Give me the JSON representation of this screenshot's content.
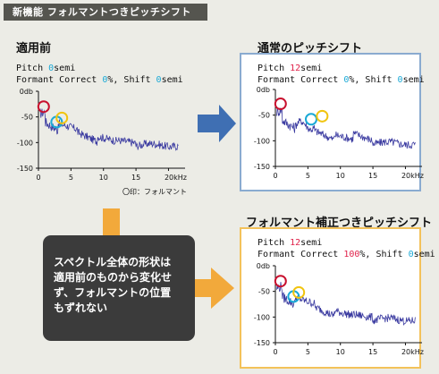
{
  "header": {
    "title": "新機能 フォルマントつきピッチシフト"
  },
  "panels": [
    {
      "title": "適用前",
      "params": [
        [
          {
            "t": "Pitch "
          },
          {
            "t": "0",
            "c": "cyan"
          },
          {
            "t": "semi"
          }
        ],
        [
          {
            "t": "Formant Correct "
          },
          {
            "t": "0",
            "c": "cyan"
          },
          {
            "t": "%, Shift "
          },
          {
            "t": "0",
            "c": "cyan"
          },
          {
            "t": "semi"
          }
        ]
      ],
      "note": "〇印：フォルマント",
      "markers": [
        "red",
        "cyan",
        "yellow"
      ]
    },
    {
      "title": "通常のピッチシフト",
      "params": [
        [
          {
            "t": "Pitch "
          },
          {
            "t": "12",
            "c": "red"
          },
          {
            "t": "semi"
          }
        ],
        [
          {
            "t": "Formant Correct "
          },
          {
            "t": "0",
            "c": "cyan"
          },
          {
            "t": "%, Shift "
          },
          {
            "t": "0",
            "c": "cyan"
          },
          {
            "t": "semi"
          }
        ]
      ],
      "markers": [
        "red",
        "cyan",
        "yellow"
      ]
    },
    {
      "title": "フォルマント補正つきピッチシフト",
      "params": [
        [
          {
            "t": "Pitch "
          },
          {
            "t": "12",
            "c": "red"
          },
          {
            "t": "semi"
          }
        ],
        [
          {
            "t": "Formant Correct "
          },
          {
            "t": "100",
            "c": "red"
          },
          {
            "t": "%, Shift "
          },
          {
            "t": "0",
            "c": "cyan"
          },
          {
            "t": "semi"
          }
        ]
      ],
      "markers": [
        "red",
        "cyan",
        "yellow"
      ]
    }
  ],
  "axes": {
    "y_ticks": [
      "0db",
      "-50",
      "-100",
      "-150"
    ],
    "x_ticks": [
      "0",
      "5",
      "10",
      "15",
      "20kHz"
    ]
  },
  "callout": {
    "text": "スペクトル全体の形状は\n適用前のものから変化せ\nず、フォルマントの位置\nもずれない"
  },
  "colors": {
    "spectrum": "#3a3aa0",
    "marker_red": "#c8102e",
    "marker_cyan": "#1aa9d6",
    "marker_yellow": "#f1c40f",
    "arrow_blue": "#3f6fb3",
    "arrow_orange": "#f2a93b"
  }
}
